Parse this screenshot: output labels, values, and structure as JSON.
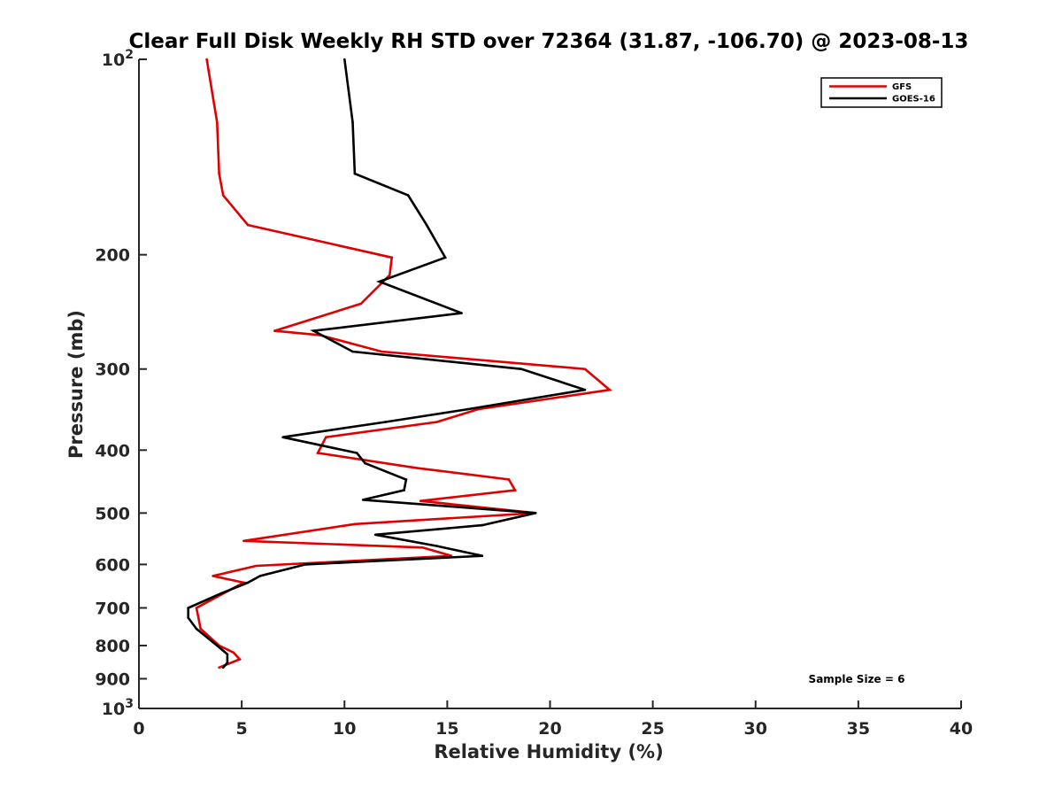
{
  "chart_data": {
    "type": "line",
    "title": "Clear Full Disk Weekly RH STD over 72364 (31.87, -106.70) @ 2023-08-13",
    "xlabel": "Relative Humidity (%)",
    "ylabel": "Pressure (mb)",
    "xlim": [
      0,
      40
    ],
    "ylim": [
      100,
      1000
    ],
    "y_scale": "log",
    "y_reversed": true,
    "x_ticks": [
      "0",
      "5",
      "10",
      "15",
      "20",
      "25",
      "30",
      "35",
      "40"
    ],
    "y_ticks": [
      {
        "value": 100,
        "label": "10",
        "sup": "2"
      },
      {
        "value": 200,
        "label": "200"
      },
      {
        "value": 300,
        "label": "300"
      },
      {
        "value": 400,
        "label": "400"
      },
      {
        "value": 500,
        "label": "500"
      },
      {
        "value": 600,
        "label": "600"
      },
      {
        "value": 700,
        "label": "700"
      },
      {
        "value": 800,
        "label": "800"
      },
      {
        "value": 900,
        "label": "900"
      },
      {
        "value": 1000,
        "label": "10",
        "sup": "3"
      }
    ],
    "legend_position": "top-right",
    "annotation": "Sample Size = 6",
    "series": [
      {
        "name": "GFS",
        "color": "#e00000",
        "points": [
          [
            3.3,
            100
          ],
          [
            3.8,
            125
          ],
          [
            3.9,
            150
          ],
          [
            4.1,
            162
          ],
          [
            5.3,
            180
          ],
          [
            12.3,
            202
          ],
          [
            12.2,
            215
          ],
          [
            10.8,
            238
          ],
          [
            6.6,
            262
          ],
          [
            8.8,
            266
          ],
          [
            11.8,
            282
          ],
          [
            21.7,
            300
          ],
          [
            22.9,
            323
          ],
          [
            16.5,
            346
          ],
          [
            14.5,
            362
          ],
          [
            9.1,
            382
          ],
          [
            8.7,
            404
          ],
          [
            13.5,
            426
          ],
          [
            18.0,
            444
          ],
          [
            18.3,
            461
          ],
          [
            13.7,
            479
          ],
          [
            19.3,
            500
          ],
          [
            10.5,
            520
          ],
          [
            5.1,
            552
          ],
          [
            13.8,
            565
          ],
          [
            15.2,
            582
          ],
          [
            5.7,
            603
          ],
          [
            3.6,
            625
          ],
          [
            5.1,
            640
          ],
          [
            4.3,
            660
          ],
          [
            2.8,
            700
          ],
          [
            3.0,
            754
          ],
          [
            3.9,
            800
          ],
          [
            4.6,
            820
          ],
          [
            4.9,
            840
          ],
          [
            3.9,
            865
          ]
        ]
      },
      {
        "name": "GOES-16",
        "color": "#000000",
        "points": [
          [
            10.0,
            100
          ],
          [
            10.4,
            125
          ],
          [
            10.5,
            150
          ],
          [
            13.1,
            162
          ],
          [
            14.0,
            180
          ],
          [
            14.9,
            202
          ],
          [
            11.7,
            220
          ],
          [
            15.7,
            246
          ],
          [
            8.5,
            262
          ],
          [
            10.4,
            282
          ],
          [
            18.6,
            300
          ],
          [
            21.7,
            323
          ],
          [
            16.0,
            346
          ],
          [
            12.0,
            362
          ],
          [
            7.0,
            382
          ],
          [
            10.6,
            404
          ],
          [
            11.0,
            419
          ],
          [
            13.0,
            444
          ],
          [
            12.9,
            461
          ],
          [
            10.9,
            477
          ],
          [
            19.3,
            500
          ],
          [
            16.7,
            522
          ],
          [
            11.5,
            540
          ],
          [
            14.5,
            562
          ],
          [
            16.7,
            582
          ],
          [
            8.1,
            600
          ],
          [
            5.9,
            625
          ],
          [
            5.3,
            640
          ],
          [
            4.0,
            665
          ],
          [
            2.4,
            700
          ],
          [
            2.4,
            725
          ],
          [
            2.8,
            754
          ],
          [
            3.8,
            800
          ],
          [
            4.3,
            825
          ],
          [
            4.3,
            850
          ],
          [
            4.1,
            865
          ]
        ]
      }
    ]
  }
}
